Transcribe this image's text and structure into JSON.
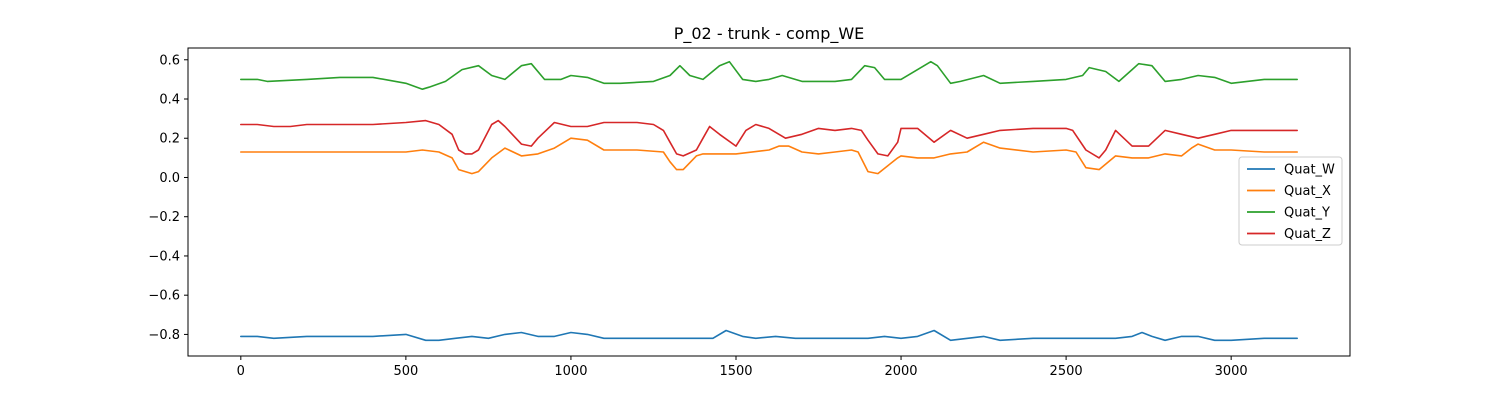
{
  "chart_data": {
    "type": "line",
    "title": "P_02 - trunk - comp_WE",
    "xlabel": "",
    "ylabel": "",
    "xlim": [
      -160,
      3360
    ],
    "ylim": [
      -0.91,
      0.66
    ],
    "x_ticks": [
      0,
      500,
      1000,
      1500,
      2000,
      2500,
      3000
    ],
    "y_ticks": [
      -0.8,
      -0.6,
      -0.4,
      -0.2,
      0.0,
      0.2,
      0.4,
      0.6
    ],
    "x_tick_labels": [
      "0",
      "500",
      "1000",
      "1500",
      "2000",
      "2500",
      "3000"
    ],
    "y_tick_labels": [
      "−0.8",
      "−0.6",
      "−0.4",
      "−0.2",
      "0.0",
      "0.2",
      "0.4",
      "0.6"
    ],
    "grid": false,
    "legend_position": "right",
    "series": [
      {
        "name": "Quat_W",
        "color": "#1f77b4",
        "x": [
          0,
          50,
          100,
          200,
          300,
          400,
          500,
          560,
          600,
          650,
          700,
          750,
          800,
          850,
          900,
          950,
          1000,
          1050,
          1100,
          1200,
          1300,
          1330,
          1380,
          1430,
          1470,
          1520,
          1560,
          1620,
          1680,
          1700,
          1800,
          1900,
          1950,
          2000,
          2050,
          2100,
          2150,
          2250,
          2300,
          2400,
          2500,
          2560,
          2600,
          2650,
          2700,
          2730,
          2760,
          2800,
          2850,
          2900,
          2950,
          3000,
          3100,
          3200
        ],
        "y": [
          -0.81,
          -0.81,
          -0.82,
          -0.81,
          -0.81,
          -0.81,
          -0.8,
          -0.83,
          -0.83,
          -0.82,
          -0.81,
          -0.82,
          -0.8,
          -0.79,
          -0.81,
          -0.81,
          -0.79,
          -0.8,
          -0.82,
          -0.82,
          -0.82,
          -0.82,
          -0.82,
          -0.82,
          -0.78,
          -0.81,
          -0.82,
          -0.81,
          -0.82,
          -0.82,
          -0.82,
          -0.82,
          -0.81,
          -0.82,
          -0.81,
          -0.78,
          -0.83,
          -0.81,
          -0.83,
          -0.82,
          -0.82,
          -0.82,
          -0.82,
          -0.82,
          -0.81,
          -0.79,
          -0.81,
          -0.83,
          -0.81,
          -0.81,
          -0.83,
          -0.83,
          -0.82,
          -0.82
        ]
      },
      {
        "name": "Quat_X",
        "color": "#ff7f0e",
        "x": [
          0,
          100,
          200,
          300,
          400,
          500,
          550,
          600,
          640,
          660,
          680,
          700,
          720,
          760,
          800,
          850,
          900,
          950,
          1000,
          1050,
          1100,
          1200,
          1280,
          1300,
          1320,
          1340,
          1380,
          1400,
          1500,
          1600,
          1630,
          1660,
          1700,
          1750,
          1800,
          1850,
          1870,
          1900,
          1930,
          1960,
          1990,
          2000,
          2050,
          2100,
          2150,
          2200,
          2250,
          2300,
          2400,
          2500,
          2530,
          2560,
          2600,
          2650,
          2700,
          2750,
          2800,
          2850,
          2880,
          2900,
          2950,
          3000,
          3100,
          3200
        ],
        "y": [
          0.13,
          0.13,
          0.13,
          0.13,
          0.13,
          0.13,
          0.14,
          0.13,
          0.1,
          0.04,
          0.03,
          0.02,
          0.03,
          0.1,
          0.15,
          0.11,
          0.12,
          0.15,
          0.2,
          0.19,
          0.14,
          0.14,
          0.13,
          0.08,
          0.04,
          0.04,
          0.11,
          0.12,
          0.12,
          0.14,
          0.16,
          0.16,
          0.13,
          0.12,
          0.13,
          0.14,
          0.13,
          0.03,
          0.02,
          0.06,
          0.1,
          0.11,
          0.1,
          0.1,
          0.12,
          0.13,
          0.18,
          0.15,
          0.13,
          0.14,
          0.13,
          0.05,
          0.04,
          0.11,
          0.1,
          0.1,
          0.12,
          0.11,
          0.15,
          0.17,
          0.14,
          0.14,
          0.13,
          0.13
        ]
      },
      {
        "name": "Quat_Y",
        "color": "#2ca02c",
        "x": [
          0,
          50,
          80,
          200,
          300,
          400,
          500,
          550,
          570,
          620,
          670,
          720,
          760,
          800,
          850,
          880,
          920,
          970,
          1000,
          1050,
          1100,
          1150,
          1250,
          1300,
          1330,
          1360,
          1400,
          1450,
          1480,
          1520,
          1560,
          1600,
          1640,
          1700,
          1800,
          1850,
          1890,
          1920,
          1950,
          2000,
          2050,
          2090,
          2110,
          2150,
          2180,
          2250,
          2300,
          2400,
          2500,
          2550,
          2570,
          2620,
          2660,
          2700,
          2720,
          2760,
          2800,
          2850,
          2900,
          2950,
          3000,
          3100,
          3200
        ],
        "y": [
          0.5,
          0.5,
          0.49,
          0.5,
          0.51,
          0.51,
          0.48,
          0.45,
          0.46,
          0.49,
          0.55,
          0.57,
          0.52,
          0.5,
          0.57,
          0.58,
          0.5,
          0.5,
          0.52,
          0.51,
          0.48,
          0.48,
          0.49,
          0.52,
          0.57,
          0.52,
          0.5,
          0.57,
          0.59,
          0.5,
          0.49,
          0.5,
          0.52,
          0.49,
          0.49,
          0.5,
          0.57,
          0.56,
          0.5,
          0.5,
          0.55,
          0.59,
          0.57,
          0.48,
          0.49,
          0.52,
          0.48,
          0.49,
          0.5,
          0.52,
          0.56,
          0.54,
          0.49,
          0.55,
          0.58,
          0.57,
          0.49,
          0.5,
          0.52,
          0.51,
          0.48,
          0.5,
          0.5
        ]
      },
      {
        "name": "Quat_Z",
        "color": "#d62728",
        "x": [
          0,
          50,
          100,
          150,
          200,
          300,
          400,
          500,
          560,
          600,
          640,
          660,
          680,
          700,
          720,
          760,
          780,
          800,
          850,
          880,
          900,
          950,
          1000,
          1050,
          1100,
          1150,
          1200,
          1250,
          1280,
          1300,
          1320,
          1340,
          1380,
          1400,
          1420,
          1450,
          1500,
          1530,
          1560,
          1600,
          1650,
          1700,
          1750,
          1800,
          1850,
          1880,
          1900,
          1930,
          1960,
          1990,
          2000,
          2050,
          2100,
          2150,
          2200,
          2250,
          2300,
          2400,
          2500,
          2520,
          2560,
          2600,
          2620,
          2650,
          2700,
          2750,
          2800,
          2850,
          2900,
          2950,
          3000,
          3100,
          3200
        ],
        "y": [
          0.27,
          0.27,
          0.26,
          0.26,
          0.27,
          0.27,
          0.27,
          0.28,
          0.29,
          0.27,
          0.22,
          0.14,
          0.12,
          0.12,
          0.14,
          0.27,
          0.29,
          0.26,
          0.17,
          0.16,
          0.2,
          0.28,
          0.26,
          0.26,
          0.28,
          0.28,
          0.28,
          0.27,
          0.24,
          0.18,
          0.12,
          0.11,
          0.14,
          0.2,
          0.26,
          0.22,
          0.16,
          0.24,
          0.27,
          0.25,
          0.2,
          0.22,
          0.25,
          0.24,
          0.25,
          0.24,
          0.19,
          0.12,
          0.11,
          0.18,
          0.25,
          0.25,
          0.18,
          0.24,
          0.2,
          0.22,
          0.24,
          0.25,
          0.25,
          0.24,
          0.14,
          0.1,
          0.14,
          0.24,
          0.16,
          0.16,
          0.24,
          0.22,
          0.2,
          0.22,
          0.24,
          0.24,
          0.24
        ]
      }
    ]
  }
}
